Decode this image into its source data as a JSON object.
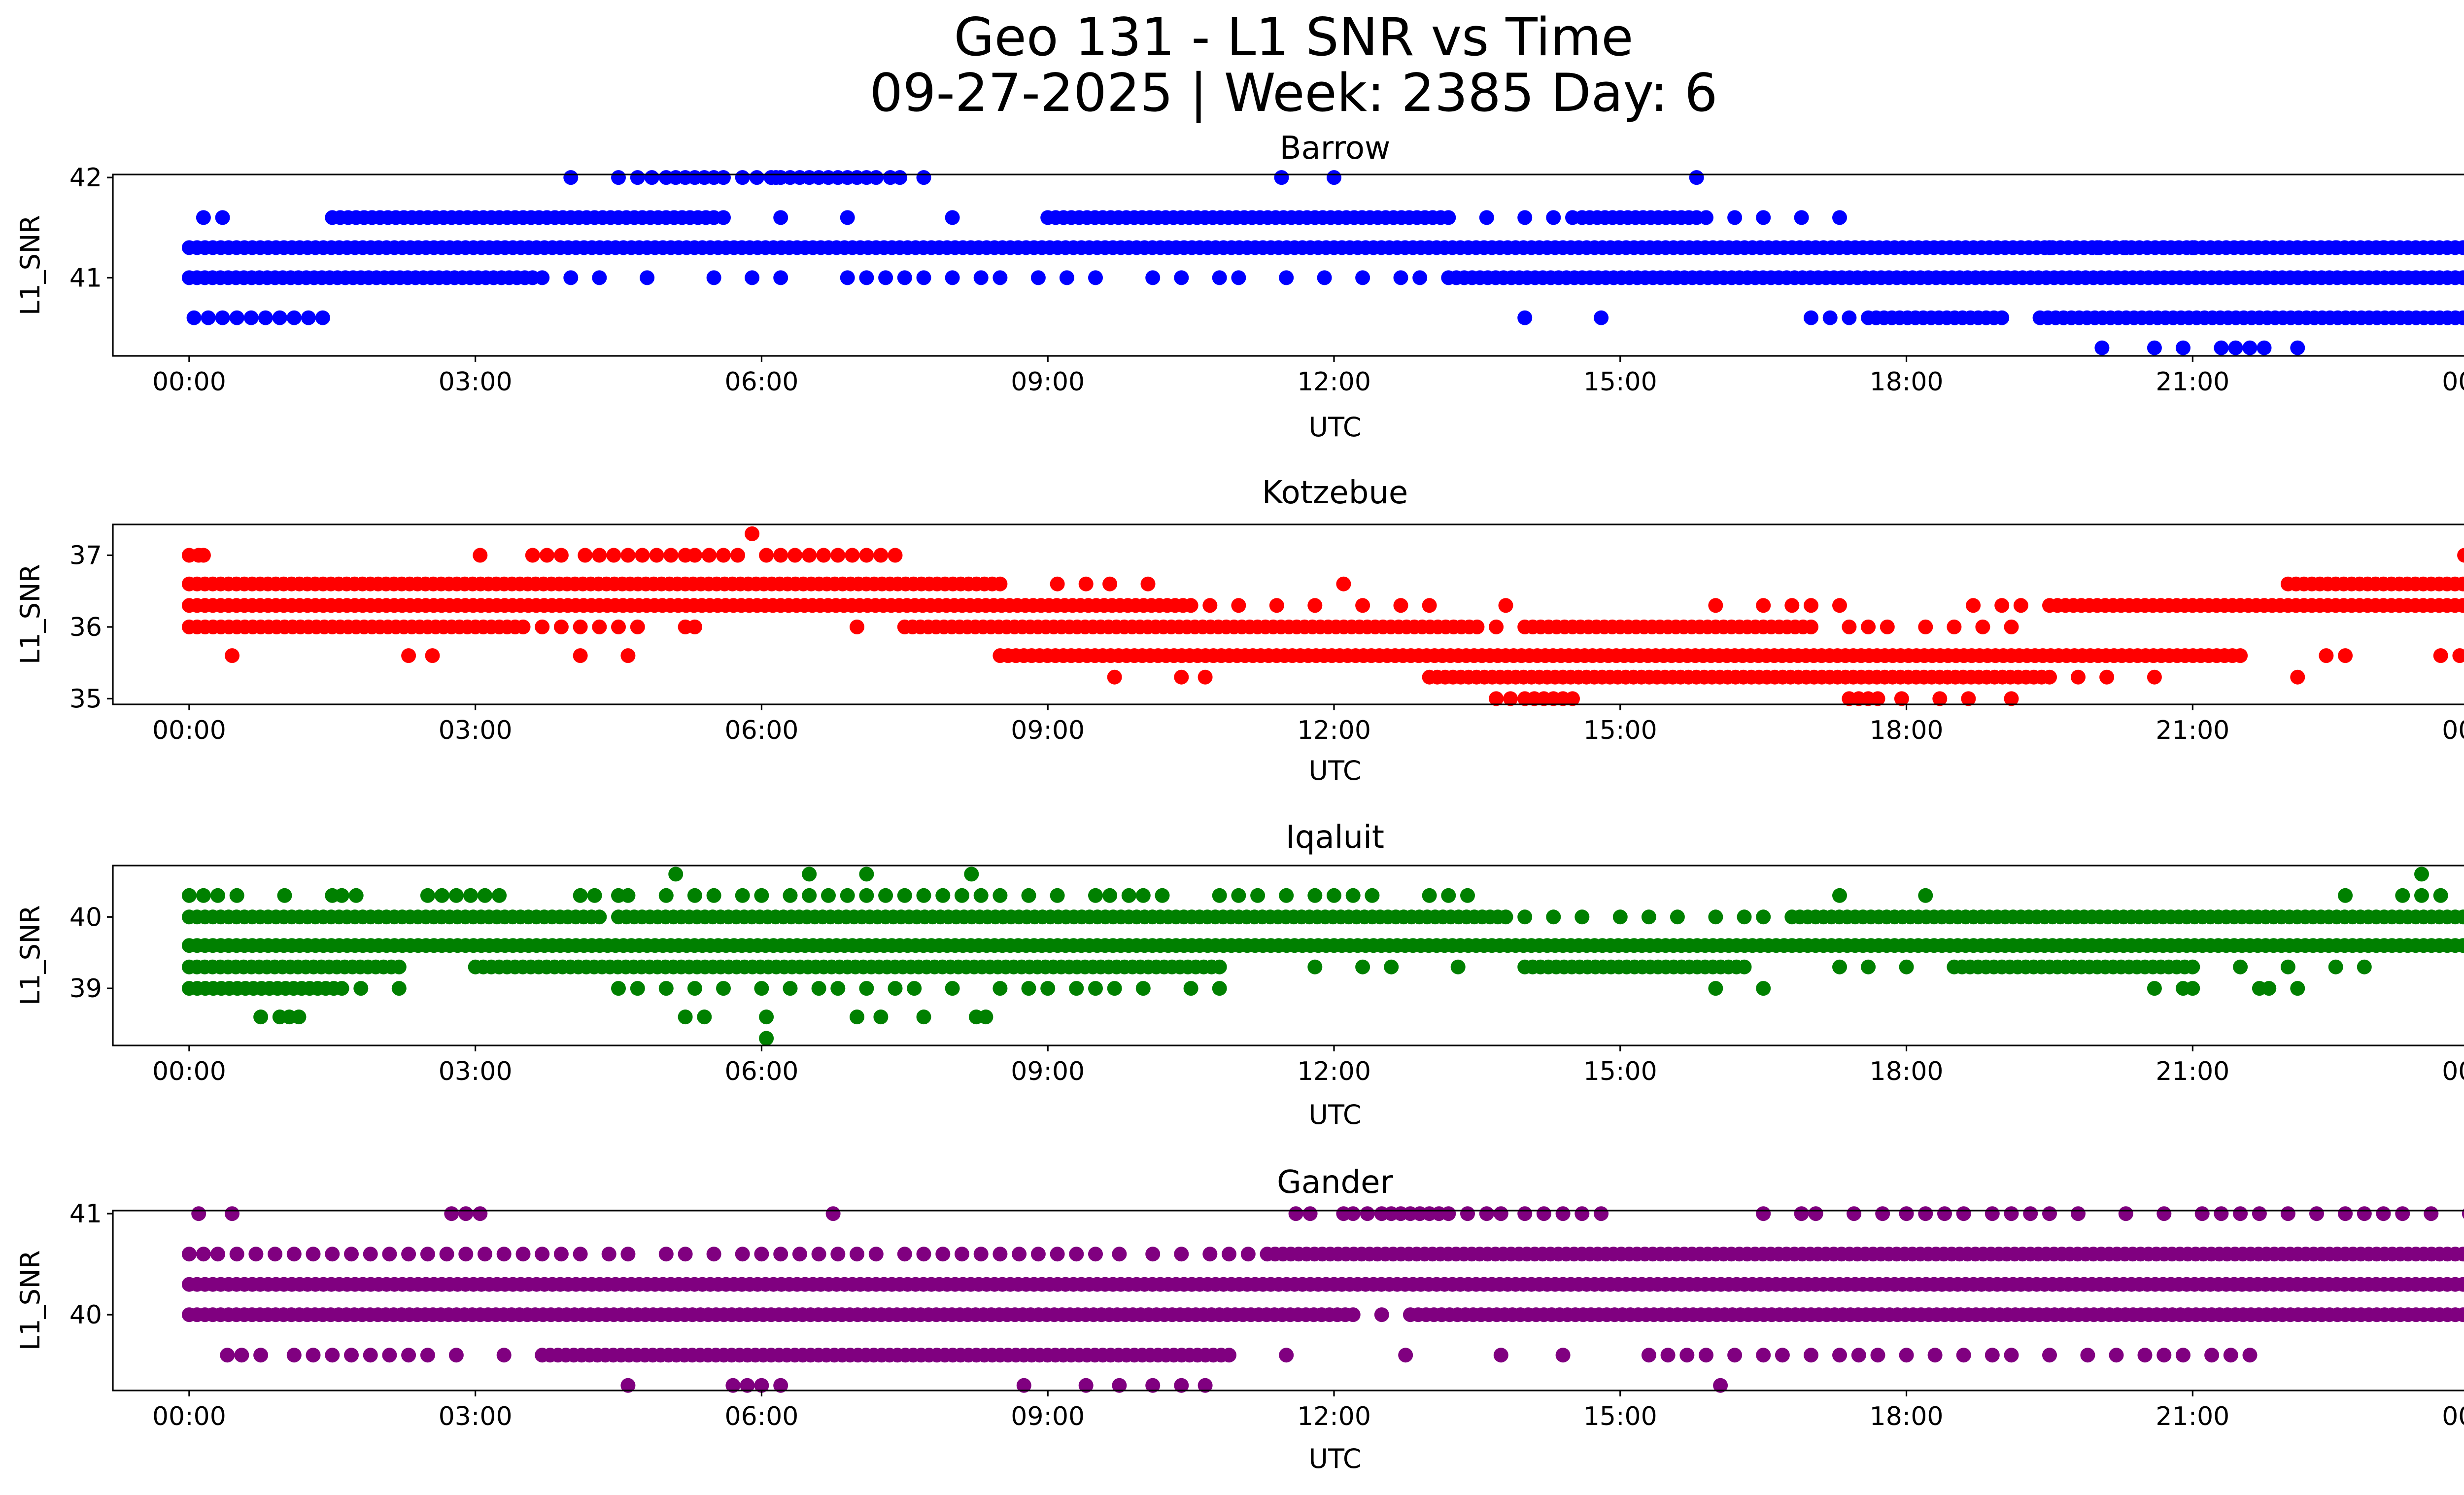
{
  "figure": {
    "title_line1": "Geo 131 - L1 SNR vs Time",
    "title_line2": "09-27-2025 | Week: 2385 Day: 6"
  },
  "chart_data": [
    {
      "type": "scatter",
      "title": "Barrow",
      "color": "#0000ff",
      "xlabel": "UTC",
      "ylabel": "L1_SNR",
      "xlim": [
        -0.8,
        24.8
      ],
      "ylim": [
        40.22,
        42.03
      ],
      "yticks": [
        41,
        42
      ],
      "xticks": [
        "00:00",
        "03:00",
        "06:00",
        "09:00",
        "12:00",
        "15:00",
        "18:00",
        "21:00",
        "00:00"
      ],
      "bands": [
        {
          "y": 41.3,
          "segments": [
            [
              0.0,
              24.0
            ]
          ]
        },
        {
          "y": 41.0,
          "segments": [
            [
              0.0,
              3.6
            ],
            [
              13.2,
              24.0
            ]
          ]
        },
        {
          "y": 41.6,
          "segments": [
            [
              1.5,
              5.5
            ],
            [
              9.0,
              13.2
            ],
            [
              14.6,
              15.8
            ]
          ]
        },
        {
          "y": 40.6,
          "segments": [
            [
              17.6,
              19.0
            ],
            [
              19.4,
              24.0
            ]
          ]
        }
      ],
      "points": [
        {
          "y": 42.0,
          "x": [
            4.0,
            4.5,
            4.7,
            4.85,
            5.0,
            5.1,
            5.2,
            5.3,
            5.4,
            5.5,
            5.6,
            5.8,
            5.95,
            6.1,
            6.15,
            6.2,
            6.3,
            6.4,
            6.5,
            6.6,
            6.7,
            6.8,
            6.9,
            7.0,
            7.1,
            7.2,
            7.35,
            7.45,
            7.7,
            11.45,
            12.0,
            15.8
          ]
        },
        {
          "y": 41.6,
          "x": [
            0.15,
            0.35,
            5.6,
            6.2,
            6.9,
            8.0,
            13.6,
            14.0,
            14.3,
            14.5,
            15.9,
            16.2,
            16.5,
            16.9,
            17.3
          ]
        },
        {
          "y": 41.3,
          "x": [
            19.5,
            20.0,
            20.3,
            20.7,
            21.0,
            22.1,
            22.5,
            23.0
          ]
        },
        {
          "y": 41.0,
          "x": [
            3.7,
            4.0,
            4.3,
            4.8,
            5.5,
            5.9,
            6.2,
            6.9,
            7.1,
            7.3,
            7.5,
            7.7,
            8.0,
            8.3,
            8.5,
            8.9,
            9.2,
            9.5,
            10.1,
            10.4,
            10.8,
            11.0,
            11.5,
            11.9,
            12.3,
            12.7,
            12.9
          ]
        },
        {
          "y": 40.6,
          "x": [
            0.05,
            0.2,
            0.35,
            0.5,
            0.65,
            0.8,
            0.95,
            1.1,
            1.25,
            1.4,
            14.0,
            14.8,
            17.0,
            17.2,
            17.4
          ]
        },
        {
          "y": 40.3,
          "x": [
            20.05,
            20.6,
            20.9,
            21.3,
            21.45,
            21.6,
            21.75,
            22.1
          ]
        }
      ]
    },
    {
      "type": "scatter",
      "title": "Kotzebue",
      "color": "#ff0000",
      "xlabel": "UTC",
      "ylabel": "L1_SNR",
      "xlim": [
        -0.8,
        24.8
      ],
      "ylim": [
        34.92,
        37.43
      ],
      "yticks": [
        35,
        36,
        37
      ],
      "xticks": [
        "00:00",
        "03:00",
        "06:00",
        "09:00",
        "12:00",
        "15:00",
        "18:00",
        "21:00",
        "00:00"
      ],
      "bands": [
        {
          "y": 36.6,
          "segments": [
            [
              0.0,
              8.5
            ],
            [
              22.0,
              24.0
            ]
          ]
        },
        {
          "y": 36.3,
          "segments": [
            [
              0.0,
              10.5
            ],
            [
              19.5,
              24.0
            ]
          ]
        },
        {
          "y": 36.0,
          "segments": [
            [
              0.0,
              3.5
            ],
            [
              7.5,
              13.5
            ],
            [
              14.0,
              17.0
            ]
          ]
        },
        {
          "y": 35.6,
          "segments": [
            [
              8.5,
              21.5
            ]
          ]
        },
        {
          "y": 35.3,
          "segments": [
            [
              13.0,
              19.5
            ]
          ]
        }
      ],
      "points": [
        {
          "y": 37.0,
          "x": [
            0.0,
            0.1,
            0.15,
            3.05,
            3.6,
            3.75,
            3.9,
            4.15,
            4.3,
            4.45,
            4.6,
            4.75,
            4.9,
            5.05,
            5.2,
            5.3,
            5.45,
            5.6,
            5.75,
            6.05,
            6.2,
            6.35,
            6.5,
            6.65,
            6.8,
            6.95,
            7.1,
            7.25,
            7.4,
            23.85,
            23.95
          ]
        },
        {
          "y": 37.3,
          "x": [
            5.9
          ]
        },
        {
          "y": 36.6,
          "x": [
            9.1,
            9.4,
            9.65,
            10.05,
            12.1
          ]
        },
        {
          "y": 36.3,
          "x": [
            10.7,
            11.0,
            11.4,
            11.8,
            12.3,
            12.7,
            13.0,
            13.8,
            16.0,
            16.5,
            16.8,
            17.0,
            17.3,
            18.7,
            19.0,
            19.2
          ]
        },
        {
          "y": 36.0,
          "x": [
            3.7,
            3.9,
            4.1,
            4.3,
            4.5,
            4.7,
            5.2,
            5.3,
            7.0,
            13.7,
            17.4,
            17.6,
            17.8,
            18.2,
            18.5,
            18.8,
            19.1
          ]
        },
        {
          "y": 35.6,
          "x": [
            0.45,
            2.3,
            2.55,
            4.1,
            4.6,
            22.4,
            22.6,
            23.6,
            23.8
          ]
        },
        {
          "y": 35.3,
          "x": [
            9.7,
            10.4,
            10.65,
            19.8,
            20.1,
            20.6,
            22.1
          ]
        },
        {
          "y": 35.0,
          "x": [
            13.7,
            13.85,
            14.0,
            14.1,
            14.2,
            14.3,
            14.4,
            14.5,
            17.4,
            17.5,
            17.6,
            17.7,
            17.95,
            18.35,
            18.65,
            19.1
          ]
        }
      ]
    },
    {
      "type": "scatter",
      "title": "Iqaluit",
      "color": "#008000",
      "xlabel": "UTC",
      "ylabel": "L1_SNR",
      "xlim": [
        -0.8,
        24.8
      ],
      "ylim": [
        38.2,
        40.72
      ],
      "yticks": [
        39,
        40
      ],
      "xticks": [
        "00:00",
        "03:00",
        "06:00",
        "09:00",
        "12:00",
        "15:00",
        "18:00",
        "21:00",
        "00:00"
      ],
      "bands": [
        {
          "y": 39.6,
          "segments": [
            [
              0.0,
              24.0
            ]
          ]
        },
        {
          "y": 40.0,
          "segments": [
            [
              0.0,
              4.3
            ],
            [
              4.5,
              13.8
            ],
            [
              16.8,
              24.0
            ]
          ]
        },
        {
          "y": 39.3,
          "segments": [
            [
              0.0,
              2.2
            ],
            [
              3.0,
              10.8
            ],
            [
              14.0,
              16.3
            ],
            [
              18.5,
              21.0
            ]
          ]
        },
        {
          "y": 39.0,
          "segments": [
            [
              0.0,
              1.6
            ]
          ]
        }
      ],
      "points": [
        {
          "y": 40.6,
          "x": [
            5.1,
            6.5,
            7.1,
            8.2,
            23.4
          ]
        },
        {
          "y": 40.3,
          "x": [
            0.0,
            0.15,
            0.3,
            0.5,
            1.0,
            1.5,
            1.6,
            1.75,
            2.5,
            2.65,
            2.8,
            2.95,
            3.1,
            3.25,
            4.1,
            4.25,
            4.5,
            4.6,
            5.0,
            5.3,
            5.5,
            5.8,
            6.0,
            6.3,
            6.5,
            6.7,
            6.9,
            7.1,
            7.3,
            7.5,
            7.7,
            7.9,
            8.1,
            8.3,
            8.5,
            8.8,
            9.1,
            9.5,
            9.65,
            9.85,
            10.0,
            10.2,
            10.8,
            11.0,
            11.2,
            11.5,
            11.8,
            12.0,
            12.2,
            12.4,
            13.0,
            13.2,
            13.4,
            17.3,
            18.2,
            22.6,
            23.2,
            23.4,
            23.6
          ]
        },
        {
          "y": 40.0,
          "x": [
            14.0,
            14.3,
            14.6,
            15.0,
            15.3,
            15.6,
            16.0,
            16.3,
            16.5
          ]
        },
        {
          "y": 39.3,
          "x": [
            11.8,
            12.3,
            12.6,
            13.3,
            17.3,
            17.6,
            18.0,
            21.5,
            22.0,
            22.5,
            22.8
          ]
        },
        {
          "y": 39.0,
          "x": [
            1.8,
            2.2,
            4.5,
            4.7,
            5.0,
            5.3,
            5.6,
            6.0,
            6.3,
            6.6,
            6.8,
            7.1,
            7.4,
            7.6,
            8.0,
            8.5,
            8.8,
            9.0,
            9.3,
            9.5,
            9.7,
            10.0,
            10.5,
            10.8,
            16.0,
            16.5,
            20.6,
            20.9,
            21.0,
            21.7,
            21.8,
            22.1
          ]
        },
        {
          "y": 38.6,
          "x": [
            0.75,
            0.95,
            1.05,
            1.15,
            5.2,
            5.4,
            6.05,
            7.0,
            7.25,
            7.7,
            8.25,
            8.35
          ]
        },
        {
          "y": 38.3,
          "x": [
            6.05
          ]
        }
      ]
    },
    {
      "type": "scatter",
      "title": "Gander",
      "color": "#800080",
      "xlabel": "UTC",
      "ylabel": "L1_SNR",
      "xlim": [
        -0.8,
        24.8
      ],
      "ylim": [
        39.25,
        41.03
      ],
      "yticks": [
        40,
        41
      ],
      "xticks": [
        "00:00",
        "03:00",
        "06:00",
        "09:00",
        "12:00",
        "15:00",
        "18:00",
        "21:00",
        "00:00"
      ],
      "bands": [
        {
          "y": 40.3,
          "segments": [
            [
              0.0,
              24.0
            ]
          ]
        },
        {
          "y": 40.0,
          "segments": [
            [
              0.0,
              12.2
            ],
            [
              12.8,
              24.0
            ]
          ]
        },
        {
          "y": 40.6,
          "segments": [
            [
              11.3,
              24.0
            ]
          ]
        },
        {
          "y": 39.6,
          "segments": [
            [
              3.7,
              10.9
            ]
          ]
        }
      ],
      "points": [
        {
          "y": 41.0,
          "x": [
            0.1,
            0.45,
            2.75,
            2.9,
            3.05,
            6.75,
            11.6,
            11.75,
            12.1,
            12.2,
            12.35,
            12.5,
            12.6,
            12.7,
            12.8,
            12.9,
            13.0,
            13.1,
            13.2,
            13.4,
            13.6,
            13.75,
            14.0,
            14.2,
            14.4,
            14.6,
            14.8,
            16.5,
            16.9,
            17.05,
            17.45,
            17.75,
            18.0,
            18.2,
            18.4,
            18.6,
            18.9,
            19.1,
            19.3,
            19.5,
            19.8,
            20.3,
            20.7,
            21.1,
            21.3,
            21.5,
            21.7,
            22.0,
            22.3,
            22.6,
            22.8,
            23.0,
            23.2,
            23.5,
            23.9
          ]
        },
        {
          "y": 40.6,
          "x": [
            0.0,
            0.15,
            0.3,
            0.5,
            0.7,
            0.9,
            1.1,
            1.3,
            1.5,
            1.7,
            1.9,
            2.1,
            2.3,
            2.5,
            2.7,
            2.9,
            3.1,
            3.3,
            3.5,
            3.7,
            3.9,
            4.1,
            4.4,
            4.6,
            5.0,
            5.2,
            5.5,
            5.8,
            6.0,
            6.2,
            6.4,
            6.6,
            6.8,
            7.0,
            7.2,
            7.5,
            7.7,
            7.9,
            8.1,
            8.3,
            8.5,
            8.7,
            8.9,
            9.1,
            9.3,
            9.5,
            9.75,
            10.1,
            10.4,
            10.7,
            10.9,
            11.1
          ]
        },
        {
          "y": 40.0,
          "x": [
            12.5
          ]
        },
        {
          "y": 39.6,
          "x": [
            0.4,
            0.55,
            0.75,
            1.1,
            1.3,
            1.5,
            1.7,
            1.9,
            2.1,
            2.3,
            2.5,
            2.8,
            3.3,
            11.5,
            12.75,
            13.75,
            14.4,
            15.3,
            15.5,
            15.7,
            15.9,
            16.2,
            16.5,
            16.7,
            17.0,
            17.3,
            17.5,
            17.7,
            18.0,
            18.3,
            18.6,
            18.9,
            19.1,
            19.5,
            19.9,
            20.2,
            20.5,
            20.7,
            20.9,
            21.2,
            21.4,
            21.6
          ]
        },
        {
          "y": 39.3,
          "x": [
            4.6,
            5.7,
            5.85,
            6.0,
            6.2,
            8.75,
            9.4,
            9.75,
            10.1,
            10.4,
            10.65,
            16.05
          ]
        }
      ]
    }
  ]
}
